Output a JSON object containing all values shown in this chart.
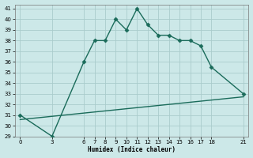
{
  "xlabel": "Humidex (Indice chaleur)",
  "ylabel": "",
  "background_color": "#cce8e8",
  "grid_color": "#aacccc",
  "line_color": "#1a6b5a",
  "line1_x": [
    0,
    3,
    6,
    7,
    8,
    9,
    10,
    11,
    12,
    13,
    14,
    15,
    16,
    17,
    18,
    21
  ],
  "line1_y": [
    31,
    29,
    36,
    38,
    38,
    40,
    39,
    41,
    39.5,
    38.5,
    38.5,
    38,
    38,
    37.5,
    35.5,
    33
  ],
  "line2_x": [
    0,
    21
  ],
  "line2_y": [
    30.57,
    32.71
  ],
  "xlim": [
    -0.5,
    21.5
  ],
  "ylim": [
    29,
    41.4
  ],
  "xticks": [
    0,
    3,
    6,
    7,
    8,
    9,
    10,
    11,
    12,
    13,
    14,
    15,
    16,
    17,
    18,
    21
  ],
  "yticks": [
    29,
    30,
    31,
    32,
    33,
    34,
    35,
    36,
    37,
    38,
    39,
    40,
    41
  ],
  "marker": "D",
  "markersize": 2.5,
  "linewidth": 1.0
}
